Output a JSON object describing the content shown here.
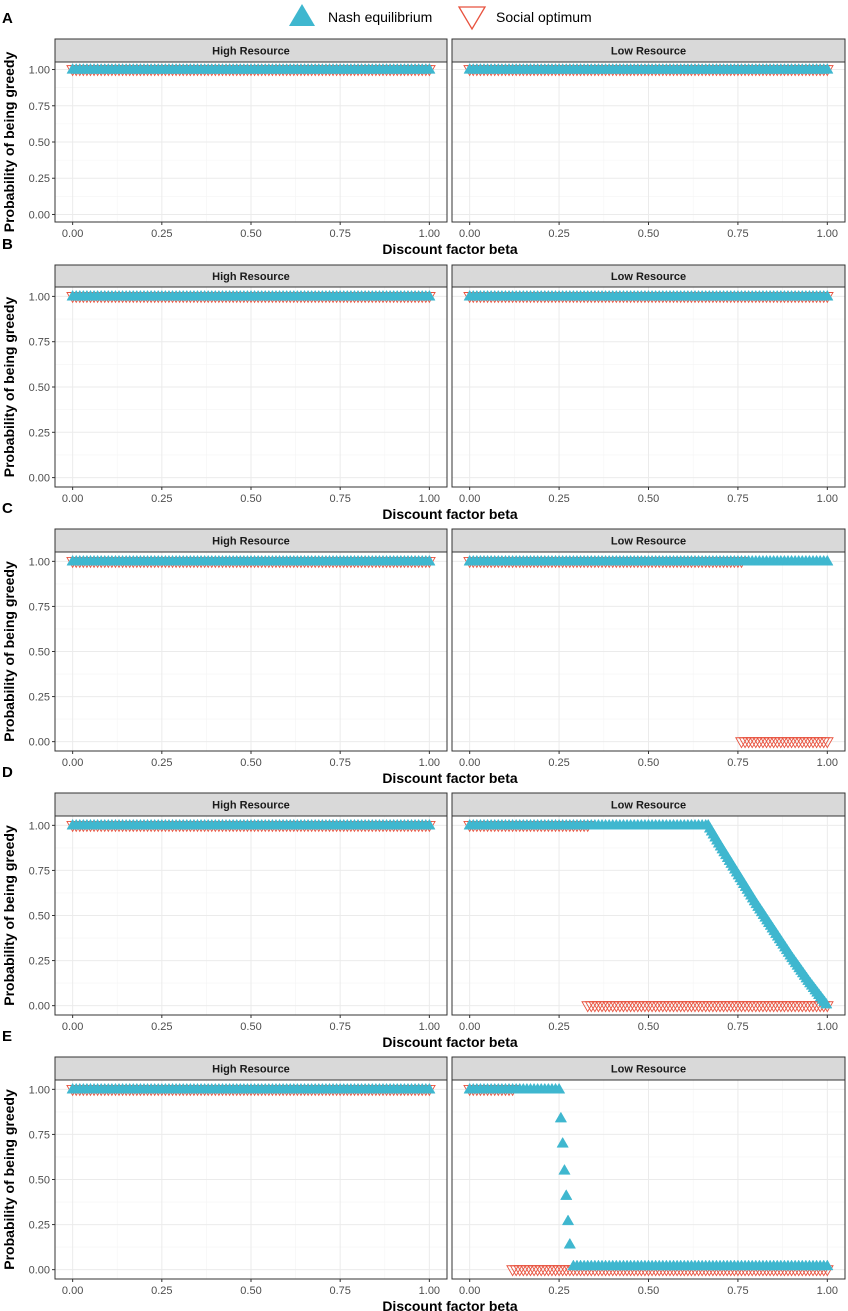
{
  "legend": {
    "entries": [
      {
        "label": "Nash equilibrium",
        "color": "#3fb7cf",
        "shape": "filled-up-triangle"
      },
      {
        "label": "Social optimum",
        "color": "#e8523e",
        "shape": "open-down-triangle"
      }
    ]
  },
  "chart_data": [
    {
      "panel": "A",
      "type": "scatter",
      "xlabel": "Discount factor beta",
      "ylabel": "Probability of being greedy",
      "xlim": [
        0,
        1
      ],
      "ylim": [
        0,
        1
      ],
      "xticks": [
        "0.00",
        "0.25",
        "0.50",
        "0.75",
        "1.00"
      ],
      "yticks": [
        "0.00",
        "0.25",
        "0.50",
        "0.75",
        "1.00"
      ],
      "facets": [
        {
          "title": "High Resource",
          "nash": [
            {
              "x": [
                0,
                1
              ],
              "y": 1
            }
          ],
          "social": [
            {
              "x": [
                0,
                1
              ],
              "y": 1
            }
          ]
        },
        {
          "title": "Low Resource",
          "nash": [
            {
              "x": [
                0,
                1
              ],
              "y": 1
            }
          ],
          "social": [
            {
              "x": [
                0,
                1
              ],
              "y": 1
            }
          ]
        }
      ]
    },
    {
      "panel": "B",
      "type": "scatter",
      "xlabel": "Discount factor beta",
      "ylabel": "Probability of being greedy",
      "xlim": [
        0,
        1
      ],
      "ylim": [
        0,
        1
      ],
      "xticks": [
        "0.00",
        "0.25",
        "0.50",
        "0.75",
        "1.00"
      ],
      "yticks": [
        "0.00",
        "0.25",
        "0.50",
        "0.75",
        "1.00"
      ],
      "facets": [
        {
          "title": "High Resource",
          "nash": [
            {
              "x": [
                0,
                1
              ],
              "y": 1
            }
          ],
          "social": [
            {
              "x": [
                0,
                1
              ],
              "y": 1
            }
          ]
        },
        {
          "title": "Low Resource",
          "nash": [
            {
              "x": [
                0,
                1
              ],
              "y": 1
            }
          ],
          "social": [
            {
              "x": [
                0,
                1
              ],
              "y": 1
            }
          ]
        }
      ]
    },
    {
      "panel": "C",
      "type": "scatter",
      "xlabel": "Discount factor beta",
      "ylabel": "Probability of being greedy",
      "xlim": [
        0,
        1
      ],
      "ylim": [
        0,
        1
      ],
      "xticks": [
        "0.00",
        "0.25",
        "0.50",
        "0.75",
        "1.00"
      ],
      "yticks": [
        "0.00",
        "0.25",
        "0.50",
        "0.75",
        "1.00"
      ],
      "facets": [
        {
          "title": "High Resource",
          "nash": [
            {
              "x": [
                0,
                1
              ],
              "y": 1
            }
          ],
          "social": [
            {
              "x": [
                0,
                1
              ],
              "y": 1
            }
          ]
        },
        {
          "title": "Low Resource",
          "nash": [
            {
              "x": [
                0,
                1
              ],
              "y": 1
            }
          ],
          "social": [
            {
              "x": [
                0,
                0.76
              ],
              "y": 1
            },
            {
              "x": [
                0.76,
                1
              ],
              "y": 0
            }
          ]
        }
      ]
    },
    {
      "panel": "D",
      "type": "scatter",
      "xlabel": "Discount factor beta",
      "ylabel": "Probability of being greedy",
      "xlim": [
        0,
        1
      ],
      "ylim": [
        0,
        1
      ],
      "xticks": [
        "0.00",
        "0.25",
        "0.50",
        "0.75",
        "1.00"
      ],
      "yticks": [
        "0.00",
        "0.25",
        "0.50",
        "0.75",
        "1.00"
      ],
      "facets": [
        {
          "title": "High Resource",
          "nash": [
            {
              "x": [
                0,
                1
              ],
              "y": 1
            }
          ],
          "social": [
            {
              "x": [
                0,
                1
              ],
              "y": 1
            }
          ]
        },
        {
          "title": "Low Resource",
          "nash": [
            {
              "x": [
                0,
                0.667
              ],
              "y": 1
            }
          ],
          "nash_curve": {
            "x": [
              0.667,
              0.7,
              0.75,
              0.8,
              0.85,
              0.9,
              0.95,
              1.0
            ],
            "y": [
              1.0,
              0.89,
              0.73,
              0.57,
              0.42,
              0.27,
              0.13,
              0.0
            ]
          },
          "social": [
            {
              "x": [
                0,
                0.33
              ],
              "y": 1
            },
            {
              "x": [
                0.33,
                1
              ],
              "y": 0
            }
          ]
        }
      ]
    },
    {
      "panel": "E",
      "type": "scatter",
      "xlabel": "Discount factor beta",
      "ylabel": "Probability of being greedy",
      "xlim": [
        0,
        1
      ],
      "ylim": [
        0,
        1
      ],
      "xticks": [
        "0.00",
        "0.25",
        "0.50",
        "0.75",
        "1.00"
      ],
      "yticks": [
        "0.00",
        "0.25",
        "0.50",
        "0.75",
        "1.00"
      ],
      "facets": [
        {
          "title": "High Resource",
          "nash": [
            {
              "x": [
                0,
                1
              ],
              "y": 1
            }
          ],
          "social": [
            {
              "x": [
                0,
                1
              ],
              "y": 1
            }
          ]
        },
        {
          "title": "Low Resource",
          "nash": [
            {
              "x": [
                0,
                0.25
              ],
              "y": 1
            },
            {
              "x": [
                0.29,
                1
              ],
              "y": 0.02
            }
          ],
          "nash_points": {
            "x": [
              0.255,
              0.26,
              0.265,
              0.27,
              0.275,
              0.28
            ],
            "y": [
              0.84,
              0.7,
              0.55,
              0.41,
              0.27,
              0.14
            ]
          },
          "social": [
            {
              "x": [
                0,
                0.12
              ],
              "y": 1
            },
            {
              "x": [
                0.12,
                1
              ],
              "y": 0
            }
          ]
        }
      ]
    }
  ]
}
